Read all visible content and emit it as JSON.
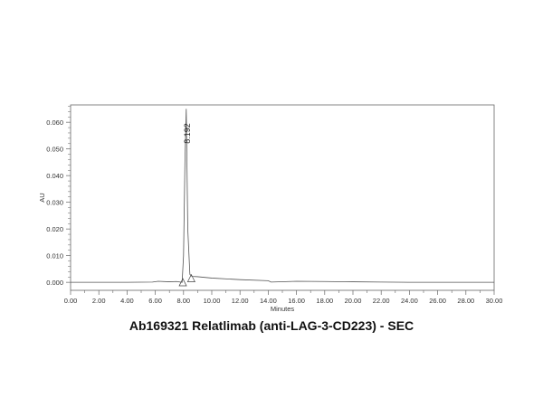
{
  "chart_data": {
    "type": "line",
    "title": "Ab169321 Relatlimab (anti-LAG-3-CD223) - SEC",
    "xlabel": "Minutes",
    "ylabel": "AU",
    "xlim": [
      0,
      30
    ],
    "ylim": [
      -0.003,
      0.0665
    ],
    "grid": false,
    "xticks": [
      "0.00",
      "2.00",
      "4.00",
      "6.00",
      "8.00",
      "10.00",
      "12.00",
      "14.00",
      "16.00",
      "18.00",
      "20.00",
      "22.00",
      "24.00",
      "26.00",
      "28.00",
      "30.00"
    ],
    "yticks": [
      "0.000",
      "0.010",
      "0.020",
      "0.030",
      "0.040",
      "0.050",
      "0.060"
    ],
    "series": [
      {
        "x": [
          0,
          2,
          4,
          5.8,
          6.2,
          7,
          7.5,
          7.9,
          8.0,
          8.1,
          8.192,
          8.3,
          8.45,
          8.6,
          9,
          10,
          12,
          14,
          14.2,
          16,
          18,
          20,
          22,
          24,
          26,
          28,
          30
        ],
        "y": [
          0,
          0,
          0,
          0.0001,
          0.0004,
          0.0002,
          0.0003,
          0.0,
          0.01,
          0.045,
          0.065,
          0.02,
          0.003,
          0.0022,
          0.0021,
          0.0016,
          0.001,
          0.0006,
          0.0001,
          0.0004,
          0.0003,
          0.0002,
          0.0001,
          0,
          0,
          0,
          0
        ]
      }
    ],
    "peak_labels": [
      {
        "x": 8.192,
        "y": 0.065,
        "text": "8.192"
      }
    ],
    "integration_markers": [
      {
        "x": 7.95,
        "y": -0.0003
      },
      {
        "x": 8.55,
        "y": 0.0012
      }
    ],
    "colors": {
      "line": "#555555",
      "frame": "#666666"
    }
  }
}
